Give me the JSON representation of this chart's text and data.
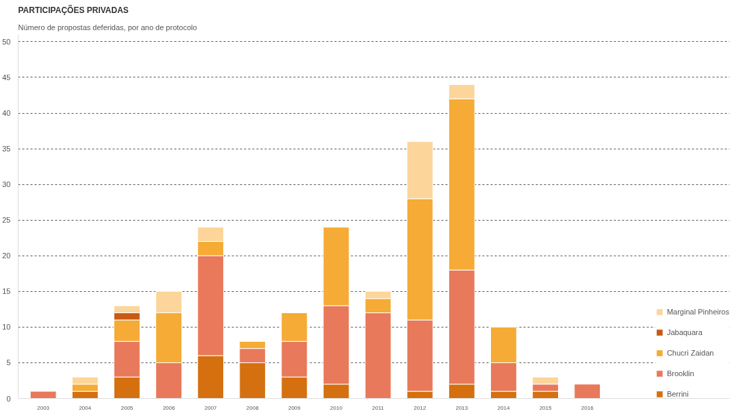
{
  "chart_data": {
    "type": "bar",
    "stacked": true,
    "title": "PARTICIPAÇÕES PRIVADAS",
    "subtitle": "Número de propostas deferidas, por ano de protocolo",
    "categories": [
      "2003",
      "2004",
      "2005",
      "2006",
      "2007",
      "2008",
      "2009",
      "2010",
      "2011",
      "2012",
      "2013",
      "2014",
      "2015",
      "2016"
    ],
    "series": [
      {
        "name": "Berrini",
        "color": "#d4700f",
        "values": [
          0,
          1,
          3,
          0,
          6,
          5,
          3,
          2,
          0,
          1,
          2,
          1,
          1,
          0
        ]
      },
      {
        "name": "Brooklin",
        "color": "#e8795a",
        "values": [
          1,
          0,
          5,
          5,
          14,
          2,
          5,
          11,
          12,
          10,
          16,
          4,
          1,
          2
        ]
      },
      {
        "name": "Chucri Zaidan",
        "color": "#f5ab35",
        "values": [
          0,
          1,
          3,
          7,
          2,
          1,
          4,
          11,
          2,
          17,
          24,
          5,
          0,
          0
        ]
      },
      {
        "name": "Jabaquara",
        "color": "#c85a14",
        "values": [
          0,
          0,
          1,
          0,
          0,
          0,
          0,
          0,
          0,
          0,
          0,
          0,
          0,
          0
        ]
      },
      {
        "name": "Marginal Pinheiros",
        "color": "#fcd59a",
        "values": [
          0,
          1,
          1,
          3,
          2,
          0,
          0,
          0,
          1,
          8,
          2,
          0,
          1,
          0
        ]
      }
    ],
    "ylim": [
      0,
      51
    ],
    "yticks": [
      0,
      5,
      10,
      15,
      20,
      25,
      30,
      35,
      40,
      45,
      50
    ],
    "grid": "y",
    "legend": "right"
  }
}
